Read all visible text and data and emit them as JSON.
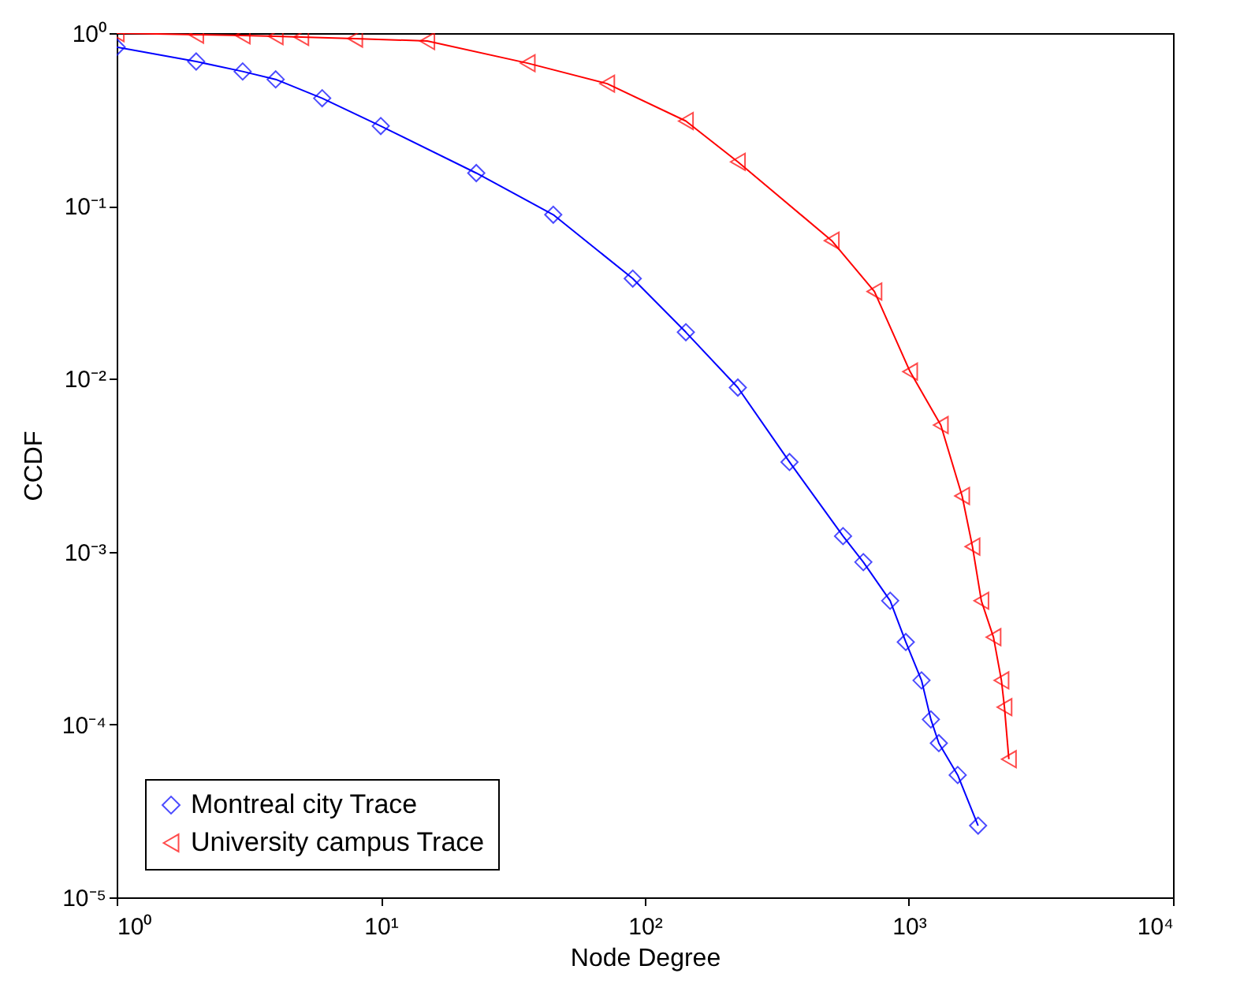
{
  "chart_data": {
    "type": "line",
    "xlabel": "Node Degree",
    "ylabel": "CCDF",
    "log": "xy",
    "grid": false,
    "legend": "bottom left",
    "xlim": [
      1,
      10000
    ],
    "ylim": [
      1e-05,
      1
    ],
    "xticks": [
      {
        "value": 1,
        "label": "10⁰"
      },
      {
        "value": 10,
        "label": "10¹"
      },
      {
        "value": 100,
        "label": "10²"
      },
      {
        "value": 1000,
        "label": "10³"
      },
      {
        "value": 10000,
        "label": "10⁴"
      }
    ],
    "yticks": [
      {
        "value": 1e-05,
        "label": "10⁻⁵"
      },
      {
        "value": 0.0001,
        "label": "10⁻⁴"
      },
      {
        "value": 0.001,
        "label": "10⁻³"
      },
      {
        "value": 0.01,
        "label": "10⁻²"
      },
      {
        "value": 0.1,
        "label": "10⁻¹"
      },
      {
        "value": 1,
        "label": "10⁰"
      }
    ],
    "series": [
      {
        "name": "Montreal city Trace",
        "color": "#0000ff",
        "marker": "diamond",
        "x": [
          1,
          2,
          3,
          4,
          6,
          10,
          23,
          45,
          90,
          143,
          225,
          353,
          563,
          672,
          849,
          973,
          1116,
          1211,
          1298,
          1530,
          1828
        ],
        "values": [
          0.83,
          0.685,
          0.6,
          0.54,
          0.42,
          0.29,
          0.155,
          0.089,
          0.038,
          0.0186,
          0.0089,
          0.0033,
          0.00123,
          0.00087,
          0.00052,
          0.0003,
          0.00018,
          0.000107,
          7.8e-05,
          5.1e-05,
          2.6e-05
        ]
      },
      {
        "name": "University campus Trace",
        "color": "#ff0000",
        "marker": "triangle",
        "x": [
          1,
          2,
          3,
          4,
          5,
          8,
          15,
          36,
          72,
          143,
          225,
          510,
          740,
          1010,
          1320,
          1590,
          1740,
          1880,
          2090,
          2240,
          2300,
          2390
        ],
        "values": [
          1,
          0.98,
          0.97,
          0.96,
          0.95,
          0.93,
          0.9,
          0.67,
          0.51,
          0.31,
          0.18,
          0.063,
          0.032,
          0.011,
          0.0054,
          0.0021,
          0.00107,
          0.00052,
          0.00032,
          0.00018,
          0.000126,
          6.3e-05
        ]
      }
    ]
  }
}
